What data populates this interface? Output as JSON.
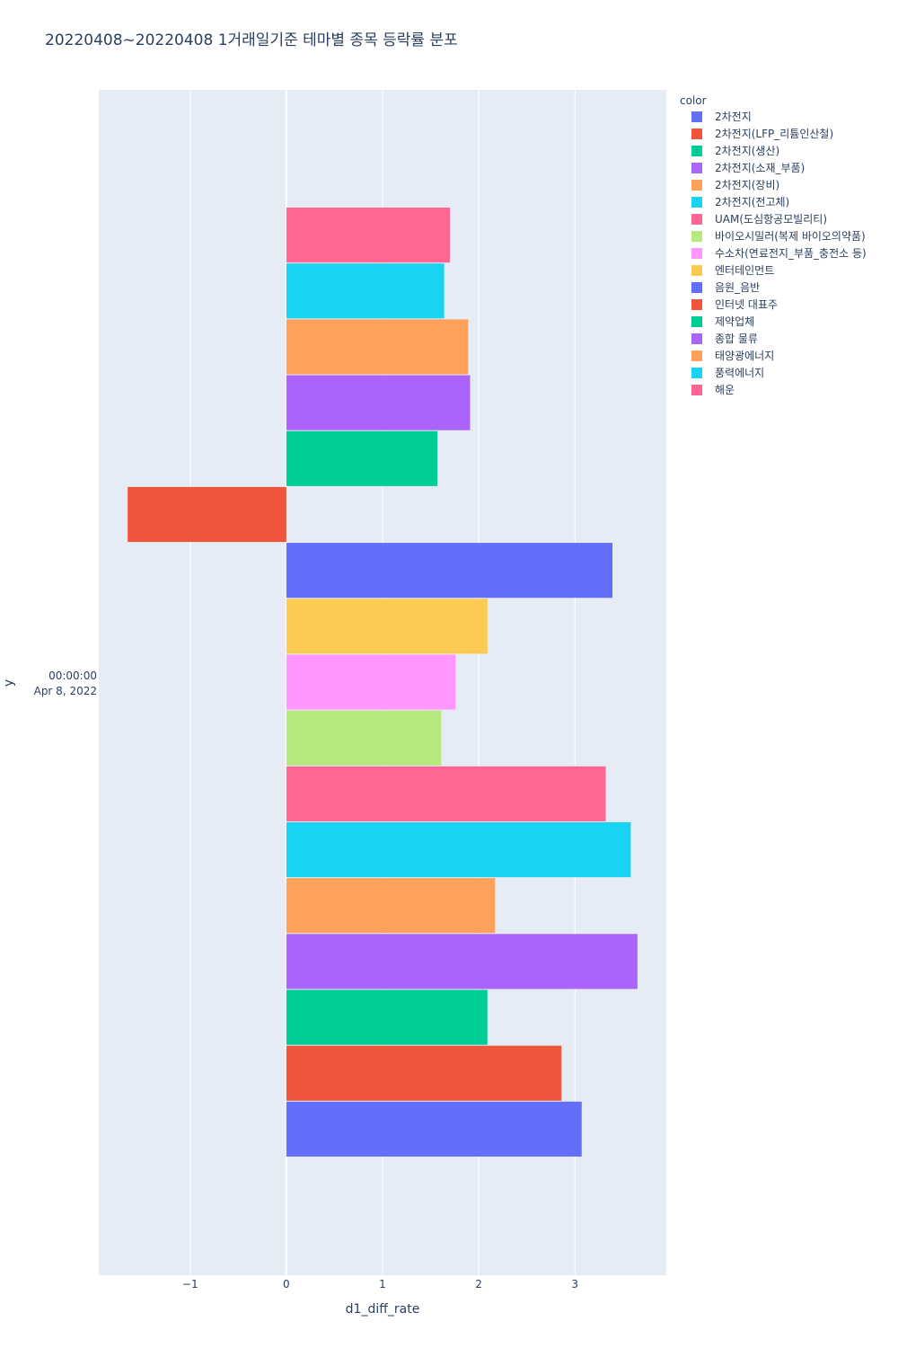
{
  "chart_data": {
    "type": "bar",
    "orientation": "horizontal",
    "title": "20220408~20220408 1거래일기준 테마별 종목 등락률 분포",
    "xlabel": "d1_diff_rate",
    "ylabel": "y",
    "y_category": [
      "00:00:00",
      "Apr 8, 2022"
    ],
    "xlim": [
      -1.95,
      3.95
    ],
    "xticks": [
      -1,
      0,
      1,
      2,
      3
    ],
    "xtick_labels": [
      "−1",
      "0",
      "1",
      "2",
      "3"
    ],
    "grid": true,
    "legend_title": "color",
    "legend_position": "top-right",
    "series": [
      {
        "name": "2차전지",
        "color": "#636efa",
        "value": 3.07
      },
      {
        "name": "2차전지(LFP_리튬인산철)",
        "color": "#EF553B",
        "value": 2.86
      },
      {
        "name": "2차전지(생산)",
        "color": "#00cc96",
        "value": 2.09
      },
      {
        "name": "2차전지(소재_부품)",
        "color": "#ab63fa",
        "value": 3.65
      },
      {
        "name": "2차전지(장비)",
        "color": "#FFA15A",
        "value": 2.17
      },
      {
        "name": "2차전지(전고체)",
        "color": "#19d3f3",
        "value": 3.58
      },
      {
        "name": "UAM(도심항공모빌리티)",
        "color": "#FF6692",
        "value": 3.32
      },
      {
        "name": "바이오시밀러(복제 바이오의약품)",
        "color": "#B6E880",
        "value": 1.61
      },
      {
        "name": "수소차(연료전지_부품_충전소 등)",
        "color": "#FF97FF",
        "value": 1.76
      },
      {
        "name": "엔터테인먼트",
        "color": "#FECB52",
        "value": 2.09
      },
      {
        "name": "음원_음반",
        "color": "#636efa",
        "value": 3.39
      },
      {
        "name": "인터넷 대표주",
        "color": "#EF553B",
        "value": -1.65
      },
      {
        "name": "제약업체",
        "color": "#00cc96",
        "value": 1.57
      },
      {
        "name": "종합 물류",
        "color": "#ab63fa",
        "value": 1.91
      },
      {
        "name": "태양광에너지",
        "color": "#FFA15A",
        "value": 1.89
      },
      {
        "name": "풍력에너지",
        "color": "#19d3f3",
        "value": 1.64
      },
      {
        "name": "해운",
        "color": "#FF6692",
        "value": 1.7
      }
    ]
  }
}
